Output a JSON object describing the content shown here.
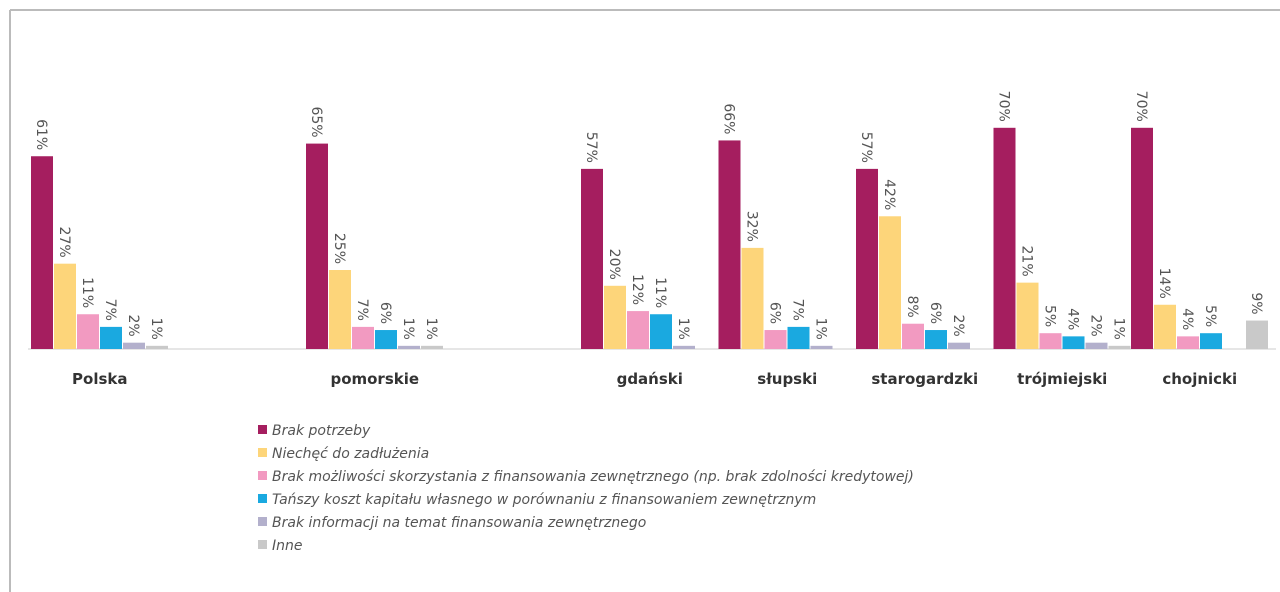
{
  "chart_data": {
    "type": "bar",
    "categories": [
      "Polska",
      null,
      "pomorskie",
      null,
      "gdański",
      "słupski",
      "starogardzki",
      "trójmiejski",
      "chojnicki"
    ],
    "series": [
      {
        "name": "Brak potrzeby",
        "color": "#a51e5f",
        "values": [
          61,
          null,
          65,
          null,
          57,
          66,
          57,
          70,
          70
        ],
        "value_labels": [
          "61%",
          null,
          "65%",
          null,
          "57%",
          "66%",
          "57%",
          "70%",
          "70%"
        ]
      },
      {
        "name": "Niechęć do zadłużenia",
        "color": "#fdd57a",
        "values": [
          27,
          null,
          25,
          null,
          20,
          32,
          42,
          21,
          14
        ],
        "value_labels": [
          "27%",
          null,
          "25%",
          null,
          "20%",
          "32%",
          "42%",
          "21%",
          "14%"
        ]
      },
      {
        "name": "Brak możliwości skorzystania z finansowania zewnętrznego (np. brak zdolności kredytowej)",
        "color": "#f29ac1",
        "values": [
          11,
          null,
          7,
          null,
          12,
          6,
          8,
          5,
          4
        ],
        "value_labels": [
          "11%",
          null,
          "7%",
          null,
          "12%",
          "6%",
          "8%",
          "5%",
          "4%"
        ]
      },
      {
        "name": "Tańszy koszt kapitału własnego w porównaniu z finansowaniem zewnętrznym",
        "color": "#1aa9e0",
        "values": [
          7,
          null,
          6,
          null,
          11,
          7,
          6,
          4,
          5
        ],
        "value_labels": [
          "7%",
          null,
          "6%",
          null,
          "11%",
          "7%",
          "6%",
          "4%",
          "5%"
        ]
      },
      {
        "name": "Brak informacji na temat finansowania zewnętrznego",
        "color": "#b3b0cc",
        "values": [
          2,
          null,
          1,
          null,
          1,
          1,
          2,
          2,
          null
        ],
        "value_labels": [
          "2%",
          null,
          "1%",
          null,
          "1%",
          "1%",
          "2%",
          "2%",
          null
        ]
      },
      {
        "name": "Inne",
        "color": "#c9c9c9",
        "values": [
          1,
          null,
          1,
          null,
          null,
          null,
          null,
          1,
          9
        ],
        "value_labels": [
          "1%",
          null,
          "1%",
          null,
          null,
          null,
          null,
          "1%",
          "9%"
        ]
      }
    ]
  }
}
